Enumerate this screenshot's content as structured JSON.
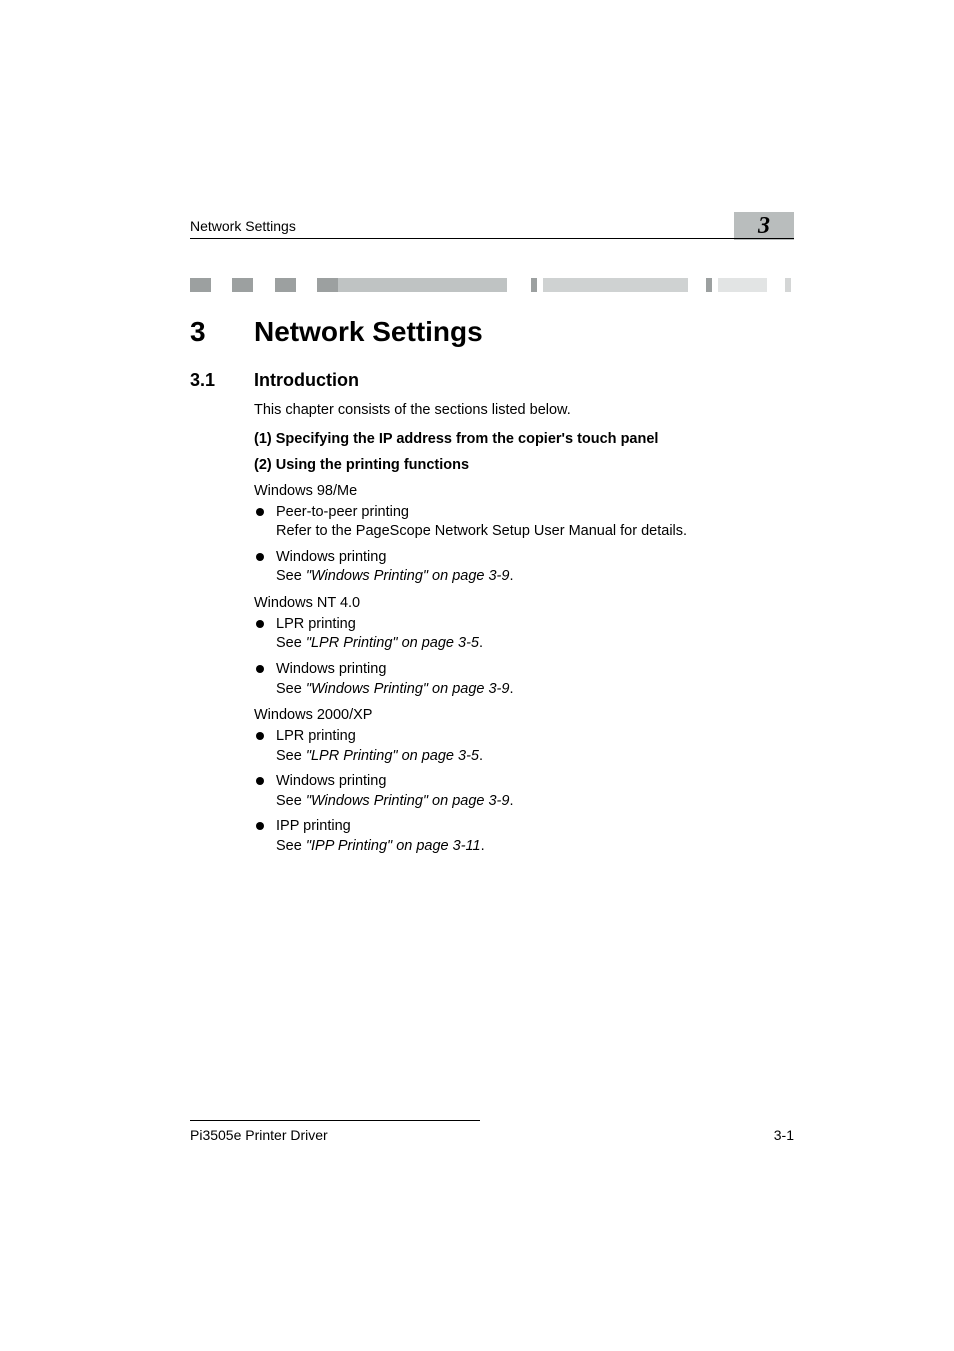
{
  "header": {
    "running_title": "Network Settings",
    "chapter_badge": "3",
    "badge_bg": "#b9bdbd"
  },
  "stripes": {
    "segments": [
      {
        "width_pct": 3.5,
        "color": "#9ca0a0"
      },
      {
        "width_pct": 3.5,
        "color": "#ffffff"
      },
      {
        "width_pct": 3.5,
        "color": "#9ca0a0"
      },
      {
        "width_pct": 3.5,
        "color": "#ffffff"
      },
      {
        "width_pct": 3.5,
        "color": "#9ca0a0"
      },
      {
        "width_pct": 3.5,
        "color": "#ffffff"
      },
      {
        "width_pct": 3.5,
        "color": "#9ca0a0"
      },
      {
        "width_pct": 28.0,
        "color": "#bfc3c3"
      },
      {
        "width_pct": 4.0,
        "color": "#ffffff"
      },
      {
        "width_pct": 1.0,
        "color": "#9ca0a0"
      },
      {
        "width_pct": 1.0,
        "color": "#ffffff"
      },
      {
        "width_pct": 24.0,
        "color": "#cfd2d2"
      },
      {
        "width_pct": 3.0,
        "color": "#ffffff"
      },
      {
        "width_pct": 1.0,
        "color": "#9ca0a0"
      },
      {
        "width_pct": 1.0,
        "color": "#ffffff"
      },
      {
        "width_pct": 8.0,
        "color": "#e2e4e4"
      },
      {
        "width_pct": 3.0,
        "color": "#ffffff"
      },
      {
        "width_pct": 1.0,
        "color": "#d4d6d6"
      }
    ]
  },
  "h1": {
    "num": "3",
    "text": "Network Settings"
  },
  "h2": {
    "num": "3.1",
    "text": "Introduction"
  },
  "intro_para": "This chapter consists of the sections listed below.",
  "step1": "(1) Specifying the IP address from the copier's touch panel",
  "step2": "(2) Using the printing functions",
  "groups": [
    {
      "os": "Windows 98/Me",
      "items": [
        {
          "line1": "Peer-to-peer printing",
          "line2_prefix": "Refer to the PageScope Network Setup User Manual for details.",
          "line2_italic": ""
        },
        {
          "line1": "Windows printing",
          "line2_prefix": "See ",
          "line2_italic": "\"Windows Printing\" on page 3-9",
          "line2_suffix": "."
        }
      ]
    },
    {
      "os": "Windows NT 4.0",
      "items": [
        {
          "line1": "LPR printing",
          "line2_prefix": "See ",
          "line2_italic": "\"LPR Printing\" on page 3-5",
          "line2_suffix": "."
        },
        {
          "line1": "Windows printing",
          "line2_prefix": "See ",
          "line2_italic": "\"Windows Printing\" on page 3-9",
          "line2_suffix": "."
        }
      ]
    },
    {
      "os": "Windows 2000/XP",
      "items": [
        {
          "line1": "LPR printing",
          "line2_prefix": "See ",
          "line2_italic": "\"LPR Printing\" on page 3-5",
          "line2_suffix": "."
        },
        {
          "line1": "Windows printing",
          "line2_prefix": "See ",
          "line2_italic": "\"Windows Printing\" on page 3-9",
          "line2_suffix": "."
        },
        {
          "line1": "IPP printing",
          "line2_prefix": "See ",
          "line2_italic": "\"IPP Printing\" on page 3-11",
          "line2_suffix": "."
        }
      ]
    }
  ],
  "footer": {
    "left": "Pi3505e Printer Driver",
    "right": "3-1"
  },
  "colors": {
    "text": "#000000",
    "bg": "#ffffff"
  },
  "typography": {
    "body_fontsize_pt": 11,
    "h1_fontsize_pt": 21,
    "h2_fontsize_pt": 14
  }
}
